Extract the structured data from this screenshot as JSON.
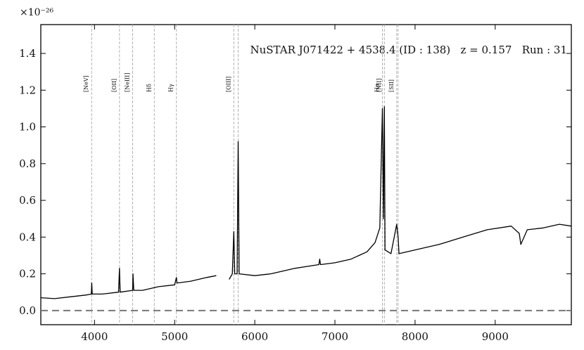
{
  "chart_data": {
    "type": "line",
    "annotation": "NuSTAR J071422 + 4538.4 (ID : 138)   z = 0.157   Run : 31",
    "y_offset_label": "×10⁻²⁶",
    "xlim": [
      3330,
      9950
    ],
    "ylim": [
      -0.077,
      1.557
    ],
    "xticks": [
      4000,
      5000,
      6000,
      7000,
      8000,
      9000
    ],
    "yticks": [
      {
        "value": 0,
        "label": "0.0"
      },
      0.2,
      0.4,
      0.6,
      0.8,
      {
        "value": 1,
        "label": "1.0"
      },
      1.2,
      1.4
    ],
    "hline": 0,
    "lines": [
      {
        "label": "[NeV]",
        "x": [
          3964
        ]
      },
      {
        "label": "[OII]",
        "x": [
          4312
        ]
      },
      {
        "label": "[NeIII]",
        "x": [
          4476
        ]
      },
      {
        "label": "Hδ",
        "x": [
          4746
        ]
      },
      {
        "label": "Hγ",
        "x": [
          5022
        ]
      },
      {
        "label": "[OIII]",
        "x": [
          5738,
          5793
        ]
      },
      {
        "label": "Hα",
        "x": [
          7593
        ]
      },
      {
        "label": "[NII]",
        "x": [
          7617
        ]
      },
      {
        "label": "[SII]",
        "x": [
          7771,
          7788
        ]
      }
    ],
    "series": [
      {
        "color": "#000000",
        "x": [
          3330,
          3500,
          3700,
          3900,
          3960,
          3966,
          3972,
          4100,
          4300,
          4312,
          4320,
          4476,
          4480,
          4490,
          4600,
          4800,
          5000,
          5022,
          5030,
          5200,
          5400,
          5520,
          5600,
          5680,
          5720,
          5738,
          5750,
          5780,
          5793,
          5805,
          6000,
          6200,
          6500,
          6800,
          6810,
          6820,
          7000,
          7200,
          7300,
          7400,
          7500,
          7560,
          7580,
          7593,
          7605,
          7617,
          7625,
          7700,
          7771,
          7788,
          7800,
          8000,
          8300,
          8600,
          8900,
          9200,
          9300,
          9320,
          9400,
          9600,
          9800,
          9950
        ],
        "values": [
          0.07,
          0.065,
          0.075,
          0.085,
          0.09,
          0.15,
          0.09,
          0.09,
          0.1,
          0.23,
          0.1,
          0.11,
          0.2,
          0.11,
          0.11,
          0.13,
          0.14,
          0.18,
          0.15,
          0.16,
          0.18,
          0.19,
          null,
          0.17,
          0.2,
          0.43,
          0.2,
          0.2,
          0.92,
          0.2,
          0.19,
          0.2,
          0.23,
          0.25,
          0.28,
          0.25,
          0.26,
          0.28,
          0.3,
          0.32,
          0.37,
          0.45,
          0.86,
          1.1,
          0.5,
          1.11,
          0.33,
          0.31,
          0.47,
          0.4,
          0.31,
          0.33,
          0.36,
          0.4,
          0.44,
          0.46,
          0.42,
          0.36,
          0.44,
          0.45,
          0.47,
          0.46
        ]
      }
    ]
  }
}
